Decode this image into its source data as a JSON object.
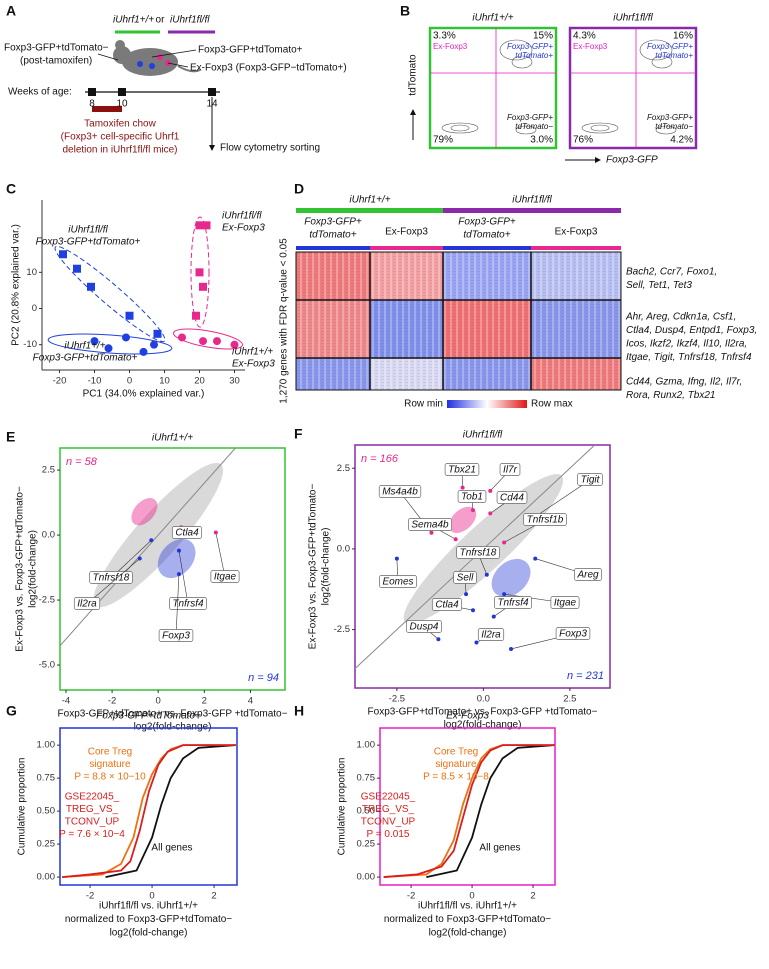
{
  "panel_a": {
    "letter": "A",
    "genotype_wt": "iUhrf1+/+",
    "or": "or",
    "genotype_fl": "iUhrf1fl/fl",
    "label_tdtom_neg": "Foxp3-GFP+tdTomato−",
    "post_tamoxifen": "(post-tamoxifen)",
    "label_tdtom_pos": "Foxp3-GFP+tdTomato+",
    "label_exfoxp3": "Ex-Foxp3 (Foxp3-GFP−tdTomato+)",
    "weeks_label": "Weeks of age:",
    "weeks": [
      "8",
      "10",
      "14"
    ],
    "chow": [
      "Tamoxifen chow",
      "(Foxp3+ cell-specific Uhrf1",
      "deletion in iUhrf1fl/fl mice)"
    ],
    "sorting": "Flow cytometry sorting"
  },
  "panel_b": {
    "letter": "B",
    "y_label": "tdTomato",
    "x_label": "Foxp3-GFP",
    "plots": [
      {
        "title": "iUhrf1+/+",
        "color": "#33c233",
        "quadrants": [
          "3.3%",
          "15%",
          "79%",
          "3.0%"
        ]
      },
      {
        "title": "iUhrf1fl/fl",
        "color": "#8a2aa8",
        "quadrants": [
          "4.3%",
          "16%",
          "76%",
          "4.2%"
        ]
      }
    ],
    "gate_labels": {
      "ex": "Ex-Foxp3",
      "pos": [
        "Foxp3-GFP+",
        "tdTomato+"
      ],
      "neg": [
        "Foxp3-GFP+",
        "tdTomato−"
      ]
    }
  },
  "panel_c": {
    "letter": "C",
    "chart": {
      "type": "scatter",
      "x_label": "PC1 (34.0% explained var.)",
      "y_label": "PC2 (20.8% explained var.)",
      "xlim": [
        -25,
        33
      ],
      "ylim": [
        -17,
        30
      ],
      "xticks": [
        -20,
        -10,
        0,
        10,
        20,
        30
      ],
      "yticks": [
        -10,
        0,
        10
      ],
      "series": [
        {
          "color": "#1f3fe0",
          "marker": "square",
          "x": [
            -19,
            -15,
            -11,
            0,
            8
          ],
          "y": [
            15,
            11,
            6,
            -2,
            -7
          ]
        },
        {
          "color": "#1f3fe0",
          "marker": "circle",
          "x": [
            -10,
            -6,
            -1,
            4,
            7
          ],
          "y": [
            -9,
            -11,
            -8,
            -12,
            -10
          ]
        },
        {
          "color": "#e8288c",
          "marker": "square",
          "x": [
            20,
            22,
            20,
            21,
            19
          ],
          "y": [
            23,
            23,
            10,
            6,
            -2
          ]
        },
        {
          "color": "#e8288c",
          "marker": "circle",
          "x": [
            15,
            21,
            25,
            30
          ],
          "y": [
            -8,
            -9,
            -9,
            -10
          ]
        }
      ],
      "group_labels": [
        [
          "iUhrf1fl/fl",
          "Foxp3-GFP+tdTomato+"
        ],
        [
          "iUhrf1+/+",
          "Foxp3-GFP+tdTomato+"
        ],
        [
          "iUhrf1fl/fl",
          "Ex-Foxp3"
        ],
        [
          "iUhrf1+/+",
          "Ex-Foxp3"
        ]
      ]
    }
  },
  "panel_d": {
    "letter": "D",
    "groups": [
      "iUhrf1+/+",
      "iUhrf1fl/fl"
    ],
    "columns": [
      [
        "Foxp3-GFP+",
        "tdTomato+"
      ],
      [
        "Ex-Foxp3"
      ],
      [
        "Foxp3-GFP+",
        "tdTomato+"
      ],
      [
        "Ex-Foxp3"
      ]
    ],
    "y_label": "1,270 genes with FDR q-value < 0.05",
    "clusters": [
      [
        "Bach2, Ccr7, Foxo1,",
        "Sell, Tet1, Tet3"
      ],
      [
        "Ahr, Areg, Cdkn1a, Csf1,",
        "Ctla4, Dusp4, Entpd1, Foxp3,",
        "Icos, Ikzf2, Ikzf4, Il10, Il2ra,",
        "Itgae, Tigit, Tnfrsf18, Tnfrsf4"
      ],
      [
        "Cd44, Gzma, Ifng, Il2, Il7r,",
        "Rora, Runx2, Tbx21"
      ]
    ],
    "legend": [
      "Row min",
      "Row max"
    ]
  },
  "panel_e": {
    "letter": "E",
    "chart": {
      "type": "scatter",
      "title": "iUhrf1+/+",
      "color": "#33c233",
      "xlim": [
        -4.26,
        5.5
      ],
      "ylim": [
        -5.96,
        3.35
      ],
      "xticks": [
        -4,
        -2,
        0,
        2,
        4
      ],
      "yticks": [
        {
          "value": -5,
          "label": "-5.0"
        },
        -2.5,
        {
          "value": 0,
          "label": "0.0"
        },
        2.5
      ],
      "x_label": [
        "Foxp3-GFP+tdTomato+ vs. Foxp3-GFP +tdTomato−",
        "log2(fold-change)"
      ],
      "y_label": [
        "Ex-Foxp3 vs. Foxp3-GFP+tdTomato−",
        "log2(fold-change)"
      ],
      "n_up": "n = 58",
      "n_down": "n = 94",
      "genes": {
        "labels": [
          "Ctla4",
          "Tnfrsf18",
          "Itgae",
          "Il2ra",
          "Tnfrsf4",
          "Foxp3"
        ],
        "x": [
          1.0,
          -0.3,
          2.5,
          -0.8,
          0.9,
          0.9
        ],
        "y": [
          0.3,
          -0.2,
          0.1,
          -0.9,
          -0.6,
          -1.5
        ]
      }
    }
  },
  "panel_f": {
    "letter": "F",
    "chart": {
      "type": "scatter",
      "title": "iUhrf1fl/fl",
      "color": "#8a2aa8",
      "xlim": [
        -3.71,
        3.66
      ],
      "ylim": [
        -4.31,
        3.22
      ],
      "xticks": [
        -2.5,
        {
          "value": 0,
          "label": "0.0"
        },
        2.5
      ],
      "yticks": [
        -2.5,
        {
          "value": 0,
          "label": "0.0"
        },
        2.5
      ],
      "x_label": [
        "Foxp3-GFP+tdTomato+ vs. Foxp3-GFP +tdTomato−",
        "log2(fold-change)"
      ],
      "y_label": [
        "Ex-Foxp3 vs. Foxp3-GFP+tdTomato−",
        "log2(fold-change)"
      ],
      "n_up": "n = 166",
      "n_down": "n = 231",
      "genes": {
        "labels": [
          "Tbx21",
          "Il7r",
          "Tob1",
          "Cd44",
          "Tigit",
          "Ms4a4b",
          "Sema4b",
          "Tnfrsf1b",
          "Areg",
          "Eomes",
          "Tnfrsf18",
          "Sell",
          "Itgae",
          "Ctla4",
          "Tnfrsf4",
          "Dusp4",
          "Il2ra",
          "Foxp3"
        ],
        "x": [
          -0.6,
          0.2,
          -0.3,
          0.2,
          1.5,
          -1.5,
          -0.8,
          0.6,
          1.5,
          -2.5,
          0.1,
          -0.5,
          0.6,
          -0.3,
          0.3,
          -1.3,
          -0.2,
          0.8
        ],
        "y": [
          1.9,
          1.8,
          1.2,
          1.1,
          1.0,
          0.5,
          0.3,
          0.2,
          -0.3,
          -0.3,
          -0.8,
          -1.4,
          -1.4,
          -1.9,
          -2.1,
          -2.8,
          -2.9,
          -3.1
        ]
      }
    }
  },
  "panel_g": {
    "letter": "G",
    "chart": {
      "type": "line",
      "title": "Foxp3-GFP+tdTomato+",
      "color": "#2236d8",
      "xlim": [
        -2.97,
        2.74
      ],
      "ylim": [
        -0.06,
        1.13
      ],
      "xticks": [
        -2,
        0,
        2
      ],
      "yticks": [
        {
          "value": 0,
          "label": "0.00"
        },
        0.25,
        {
          "value": 0.5,
          "label": "0.50"
        },
        0.75,
        {
          "value": 1,
          "label": "1.00"
        }
      ],
      "y_label": "Cumulative proportion",
      "x_label": [
        "iUhrf1fl/fl vs. iUhrf1+/+",
        "normalized to Foxp3-GFP+tdTomato−",
        "log2(fold-change)"
      ],
      "series": [
        {
          "color": "#111111",
          "x": [
            -1.5,
            -0.5,
            0,
            0.3,
            0.6,
            1,
            1.5,
            2.7
          ],
          "y": [
            0,
            0.05,
            0.3,
            0.55,
            0.75,
            0.9,
            0.98,
            1
          ]
        },
        {
          "color": "#f07010",
          "x": [
            -2.9,
            -1.6,
            -1,
            -0.6,
            -0.3,
            0,
            0.3,
            0.6,
            1,
            2.7
          ],
          "y": [
            0,
            0.02,
            0.1,
            0.3,
            0.6,
            0.78,
            0.9,
            0.97,
            1,
            1
          ]
        },
        {
          "color": "#d81e1e",
          "x": [
            -2.9,
            -2,
            -1,
            -0.7,
            -0.4,
            -0.1,
            0.2,
            0.5,
            1,
            2.7
          ],
          "y": [
            0,
            0.02,
            0.05,
            0.12,
            0.35,
            0.65,
            0.85,
            0.95,
            1,
            1
          ]
        }
      ],
      "annotations": {
        "core": [
          "Core Treg",
          "signature",
          "P = 8.8 × 10−10"
        ],
        "gse": [
          "GSE22045_",
          "TREG_VS_",
          "TCONV_UP",
          "P = 7.6 × 10−4"
        ],
        "all": "All genes"
      }
    }
  },
  "panel_h": {
    "letter": "H",
    "chart": {
      "type": "line",
      "title": "Ex-Foxp3",
      "color": "#e81ec8",
      "xlim": [
        -3.02,
        2.72
      ],
      "ylim": [
        -0.06,
        1.13
      ],
      "xticks": [
        -2,
        0,
        2
      ],
      "yticks": [
        {
          "value": 0,
          "label": "0.00"
        },
        0.25,
        {
          "value": 0.5,
          "label": "0.50"
        },
        0.75,
        {
          "value": 1,
          "label": "1.00"
        }
      ],
      "y_label": "Cumulative proportion",
      "x_label": [
        "iUhrf1fl/fl vs. iUhrf1+/+",
        "normalized to Foxp3-GFP+tdTomato−",
        "log2(fold-change)"
      ],
      "series": [
        {
          "color": "#111111",
          "x": [
            -1.5,
            -0.5,
            0,
            0.3,
            0.6,
            1,
            1.5,
            2.7
          ],
          "y": [
            0,
            0.05,
            0.3,
            0.55,
            0.75,
            0.9,
            0.98,
            1
          ]
        },
        {
          "color": "#f07010",
          "x": [
            -2.9,
            -1.5,
            -1,
            -0.6,
            -0.3,
            0,
            0.3,
            0.6,
            1,
            2.7
          ],
          "y": [
            0,
            0.02,
            0.1,
            0.28,
            0.55,
            0.75,
            0.9,
            0.97,
            1,
            1
          ]
        },
        {
          "color": "#d81e1e",
          "x": [
            -2.9,
            -1.8,
            -1,
            -0.6,
            -0.3,
            0,
            0.3,
            0.6,
            1,
            2.7
          ],
          "y": [
            0,
            0.02,
            0.08,
            0.2,
            0.45,
            0.7,
            0.87,
            0.96,
            1,
            1
          ]
        }
      ],
      "annotations": {
        "core": [
          "Core Treg",
          "signature",
          "P = 8.5 × 10−8"
        ],
        "gse": [
          "GSE22045_",
          "TREG_VS_",
          "TCONV_UP",
          "P = 0.015"
        ],
        "all": "All genes"
      }
    }
  }
}
